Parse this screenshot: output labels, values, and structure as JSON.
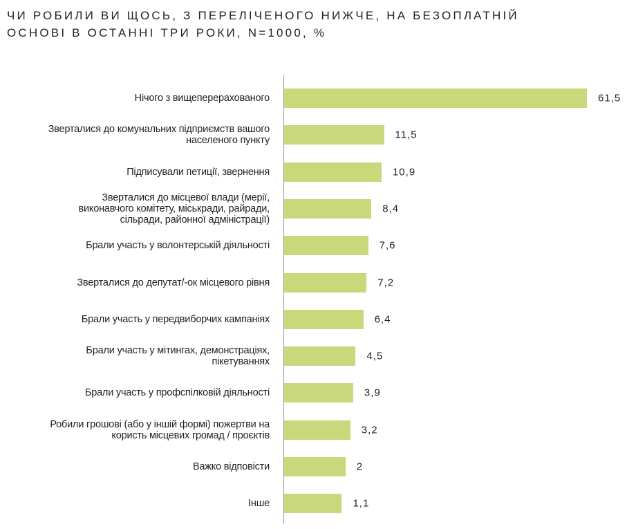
{
  "chart_data": {
    "type": "bar",
    "orientation": "horizontal",
    "title": "ЧИ РОБИЛИ ВИ ЩОСЬ, З ПЕРЕЛІЧЕНОГО НИЖЧЕ, НА БЕЗОПЛАТНІЙ ОСНОВІ В ОСТАННІ ТРИ РОКИ, N=1000, %",
    "title_lines": [
      "ЧИ РОБИЛИ ВИ ЩОСЬ, З ПЕРЕЛІЧЕНОГО НИЖЧЕ, НА БЕЗОПЛАТНІЙ",
      "ОСНОВІ В ОСТАННІ ТРИ РОКИ, N=1000, %"
    ],
    "categories": [
      "Нічого з вищеперерахованого",
      "Зверталися до комунальних підприємств вашого населеного пункту",
      "Підписували петиції, звернення",
      "Зверталися до місцевої влади (мерії, виконавчого комітету, міськради, райради, сільради, районної адміністрації)",
      "Брали участь у волонтерській діяльності",
      "Зверталися до депутат/-ок місцевого рівня",
      "Брали участь у передвиборчих кампаніях",
      "Брали участь у мітингах, демонстраціях, пікетуваннях",
      "Брали участь у профспілковій діяльності",
      "Робили грошові (або у іншій формі) пожертви на користь місцевих громад / проєктів",
      "Важко відповісти",
      "Інше"
    ],
    "category_lines": [
      [
        "Нічого з вищеперерахованого"
      ],
      [
        "Зверталися до комунальних підприємств вашого",
        "населеного пункту"
      ],
      [
        "Підписували петиції, звернення"
      ],
      [
        "Зверталися до місцевої влади (мерії,",
        "виконавчого комітету, міськради, райради,",
        "сільради, районної адміністрації)"
      ],
      [
        "Брали участь у волонтерській діяльності"
      ],
      [
        "Зверталися до депутат/-ок місцевого рівня"
      ],
      [
        "Брали участь у передвиборчих кампаніях"
      ],
      [
        "Брали участь у мітингах, демонстраціях,",
        "пікетуваннях"
      ],
      [
        "Брали участь у профспілковій діяльності"
      ],
      [
        "Робили грошові (або у іншій формі) пожертви на",
        "користь місцевих громад / проєктів"
      ],
      [
        "Важко відповісти"
      ],
      [
        "Інше"
      ]
    ],
    "values": [
      61.5,
      11.5,
      10.9,
      8.4,
      7.6,
      7.2,
      6.4,
      4.5,
      3.9,
      3.2,
      2,
      1.1
    ],
    "value_labels": [
      "61,5",
      "11,5",
      "10,9",
      "8,4",
      "7,6",
      "7,2",
      "6,4",
      "4,5",
      "3,9",
      "3,2",
      "2",
      "1,1"
    ],
    "bar_color": "#c8d87a",
    "grid": false,
    "legend": "none"
  }
}
